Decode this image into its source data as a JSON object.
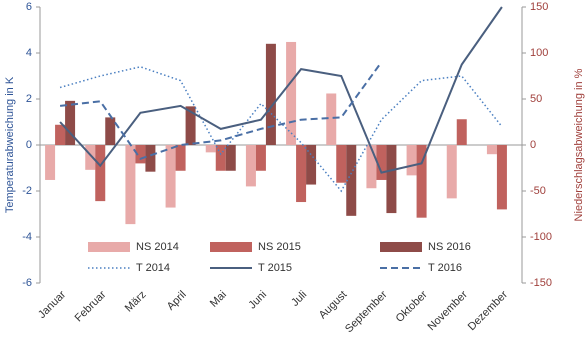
{
  "chart_data": {
    "type": "bar",
    "categories": [
      "Januar",
      "Februar",
      "März",
      "April",
      "Mai",
      "Juni",
      "Juli",
      "August",
      "September",
      "Oktober",
      "November",
      "Dezember"
    ],
    "ylabel": "Temperaturabweichung in K",
    "y2label": "Niederschlagsabweichung in %",
    "ylim": [
      -6,
      6
    ],
    "yticks": [
      -6,
      -4,
      -2,
      0,
      2,
      4,
      6
    ],
    "y2lim": [
      -150,
      150
    ],
    "y2ticks": [
      -150,
      -100,
      -50,
      0,
      50,
      100,
      150
    ],
    "series": [
      {
        "name": "NS 2014",
        "type": "bar",
        "axis": "y2",
        "color": "#e8aaa9",
        "values": [
          -38,
          -27,
          -86,
          -68,
          -8,
          -45,
          112,
          56,
          -47,
          -33,
          -58,
          -10
        ]
      },
      {
        "name": "NS 2015",
        "type": "bar",
        "axis": "y2",
        "color": "#c0625e",
        "values": [
          22,
          -61,
          -20,
          -28,
          -28,
          -28,
          -62,
          -41,
          -38,
          -79,
          28,
          -70
        ]
      },
      {
        "name": "NS 2016",
        "type": "bar",
        "axis": "y2",
        "color": "#8e4b48",
        "values": [
          48,
          30,
          -29,
          42,
          -28,
          110,
          -43,
          -77,
          -74,
          null,
          null,
          null
        ]
      },
      {
        "name": "T 2014",
        "type": "line",
        "linestyle": "dotted",
        "color": "#4a7fc1",
        "values": [
          2.5,
          3.0,
          3.4,
          2.8,
          -0.4,
          1.8,
          0.1,
          -2.0,
          1.1,
          2.8,
          3.0,
          0.8
        ]
      },
      {
        "name": "T 2015",
        "type": "line",
        "linestyle": "solid",
        "color": "#4a5f7f",
        "values": [
          1.0,
          -0.9,
          1.4,
          1.7,
          0.7,
          1.1,
          3.3,
          3.0,
          -1.2,
          -0.8,
          3.5,
          6.0
        ]
      },
      {
        "name": "T 2016",
        "type": "line",
        "linestyle": "dashed",
        "color": "#4a6fa5",
        "values": [
          1.7,
          1.9,
          -0.6,
          0.0,
          0.2,
          0.7,
          1.1,
          1.2,
          3.6,
          null,
          null,
          null
        ]
      }
    ]
  }
}
